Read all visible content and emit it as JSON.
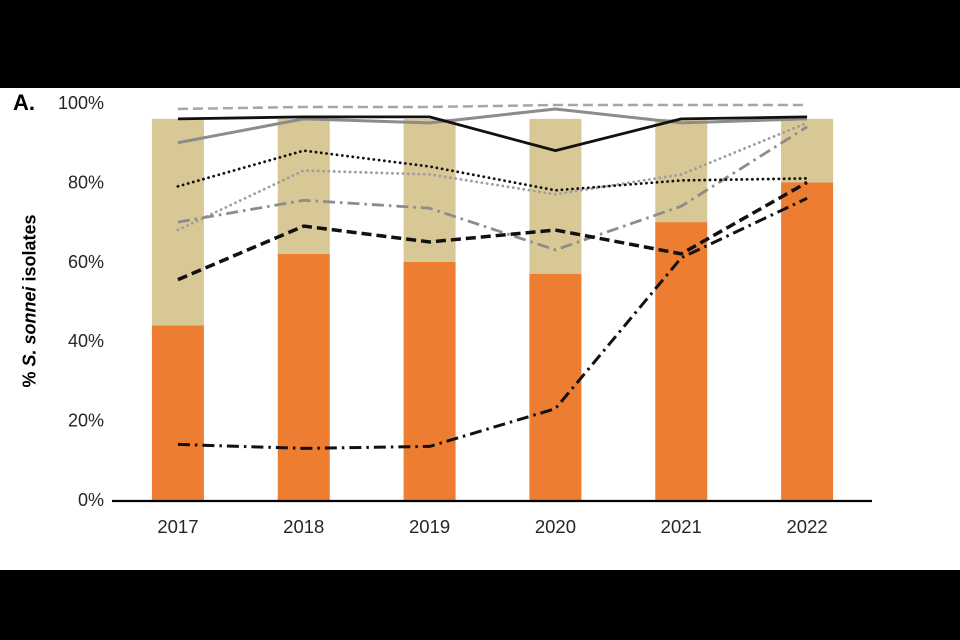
{
  "panel": {
    "label": "A."
  },
  "y_axis": {
    "title_prefix": "% ",
    "title_species": "S. sonnei",
    "title_suffix": " isolates",
    "ticks": [
      "0%",
      "20%",
      "40%",
      "60%",
      "80%",
      "100%"
    ],
    "tick_values": [
      0,
      20,
      40,
      60,
      80,
      100
    ]
  },
  "colors": {
    "bar_orange": "#ED7D31",
    "bar_tan": "#D8C896",
    "band_background": "#000000",
    "panel_background": "#FFFFFF",
    "axis_line": "#000000",
    "tick_text": "#262626"
  },
  "chart_data": {
    "type": "bar+line",
    "title": "",
    "xlabel": "",
    "ylabel": "% S. sonnei isolates",
    "categories": [
      "2017",
      "2018",
      "2019",
      "2020",
      "2021",
      "2022"
    ],
    "stacked": true,
    "ylim": [
      0,
      100
    ],
    "grid": false,
    "legend": "none",
    "bars": {
      "series": [
        {
          "name": "orange",
          "color": "#ED7D31",
          "values": [
            44,
            62,
            60,
            57,
            70,
            80
          ]
        },
        {
          "name": "tan",
          "color": "#D8C896",
          "values": [
            52,
            34,
            36,
            39,
            26,
            16
          ]
        }
      ]
    },
    "lines": [
      {
        "name": "gray-long-dashed",
        "color": "#A6A6A6",
        "style": "dashed",
        "width": 2.5,
        "values": [
          98.5,
          99,
          99,
          99.5,
          99.5,
          99.5
        ]
      },
      {
        "name": "gray-solid",
        "color": "#8C8C8C",
        "style": "solid",
        "width": 3,
        "values": [
          90,
          96,
          95,
          98.5,
          95,
          96
        ]
      },
      {
        "name": "gray-dotted",
        "color": "#9E9E9E",
        "style": "dotted",
        "width": 2.8,
        "values": [
          68,
          83,
          82,
          77,
          82,
          95
        ]
      },
      {
        "name": "gray-dashdot",
        "color": "#8C8C8C",
        "style": "dashdot",
        "width": 2.8,
        "values": [
          70,
          75.5,
          73.5,
          63,
          74,
          94
        ]
      },
      {
        "name": "black-solid",
        "color": "#111111",
        "style": "solid",
        "width": 2.8,
        "values": [
          96,
          96.5,
          96.5,
          88,
          96,
          96.5
        ]
      },
      {
        "name": "black-dotted",
        "color": "#111111",
        "style": "dotted",
        "width": 2.8,
        "values": [
          79,
          88,
          84,
          78,
          80.5,
          81
        ]
      },
      {
        "name": "black-dashed",
        "color": "#111111",
        "style": "dashed",
        "width": 3.5,
        "values": [
          55.5,
          69,
          65,
          68,
          62,
          80
        ]
      },
      {
        "name": "black-dashdot",
        "color": "#111111",
        "style": "dashdot",
        "width": 3,
        "values": [
          14,
          13,
          13.5,
          23,
          61,
          76
        ]
      }
    ]
  }
}
